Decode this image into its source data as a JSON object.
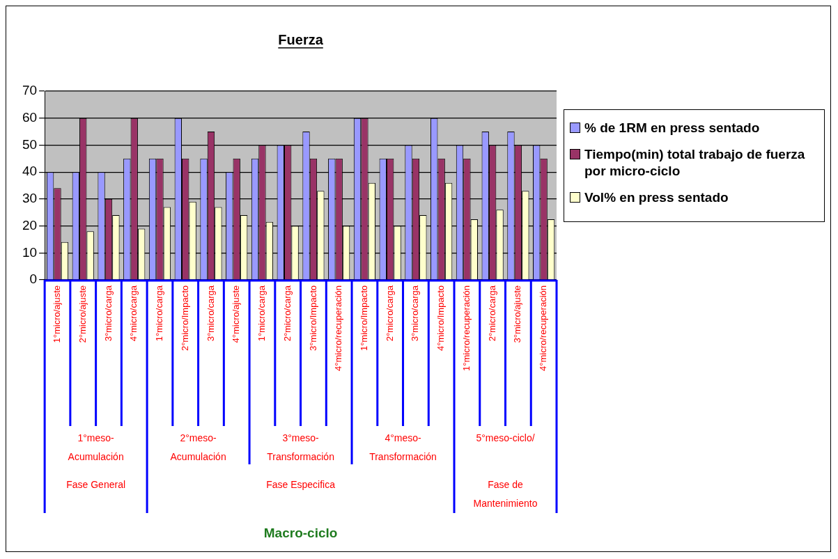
{
  "chart_data": {
    "type": "bar",
    "title": "Fuerza",
    "categories": [
      "1°micro/ajuste",
      "2°micro/ajuste",
      "3°micro/carga",
      "4°micro/carga",
      "1°micro/carga",
      "2°micro/Impacto",
      "3°micro/carga",
      "4°micro/ajuste",
      "1°micro/carga",
      "2°micro/carga",
      "3°micro/Impacto",
      "4°micro/recuperación",
      "1°micro/Impacto",
      "2°micro/carga",
      "3°micro/carga",
      "4°micro/Impacto",
      "1°micro/recuperación",
      "2°micro/carga",
      "3°micro/ajuste",
      "4°micro/recuperación"
    ],
    "series": [
      {
        "name": "% de 1RM en press sentado",
        "color": "#9999ff",
        "values": [
          40,
          40,
          40,
          45,
          45,
          60,
          45,
          40,
          45,
          50,
          55,
          45,
          60,
          45,
          50,
          60,
          50,
          55,
          55,
          50
        ]
      },
      {
        "name": "Tiempo(min) total trabajo de fuerza  por micro-ciclo",
        "color": "#993366",
        "values": [
          34,
          60,
          30,
          60,
          45,
          45,
          55,
          45,
          50,
          50,
          45,
          45,
          60,
          45,
          45,
          45,
          45,
          50,
          50,
          45
        ]
      },
      {
        "name": "Vol% en press sentado",
        "color": "#ffffcc",
        "values": [
          14,
          18,
          24,
          19,
          27,
          29,
          27,
          24,
          21.5,
          20,
          33,
          20,
          36,
          20,
          24,
          36,
          22.5,
          26,
          33,
          22.5
        ]
      }
    ],
    "ylim": [
      0,
      70
    ],
    "yticks": [
      0,
      10,
      20,
      30,
      40,
      50,
      60,
      70
    ],
    "grid": "y",
    "legend": "right",
    "annotations": [
      "1°meso-\nAcumulación",
      "2°meso-\nAcumulación",
      "3°meso-\nTransformación",
      "4°meso-\nTransformación",
      "5°meso-ciclo/",
      "Fase General",
      "Fase Especifica",
      "Fase de\nMantenimiento",
      "Macro-ciclo"
    ]
  }
}
